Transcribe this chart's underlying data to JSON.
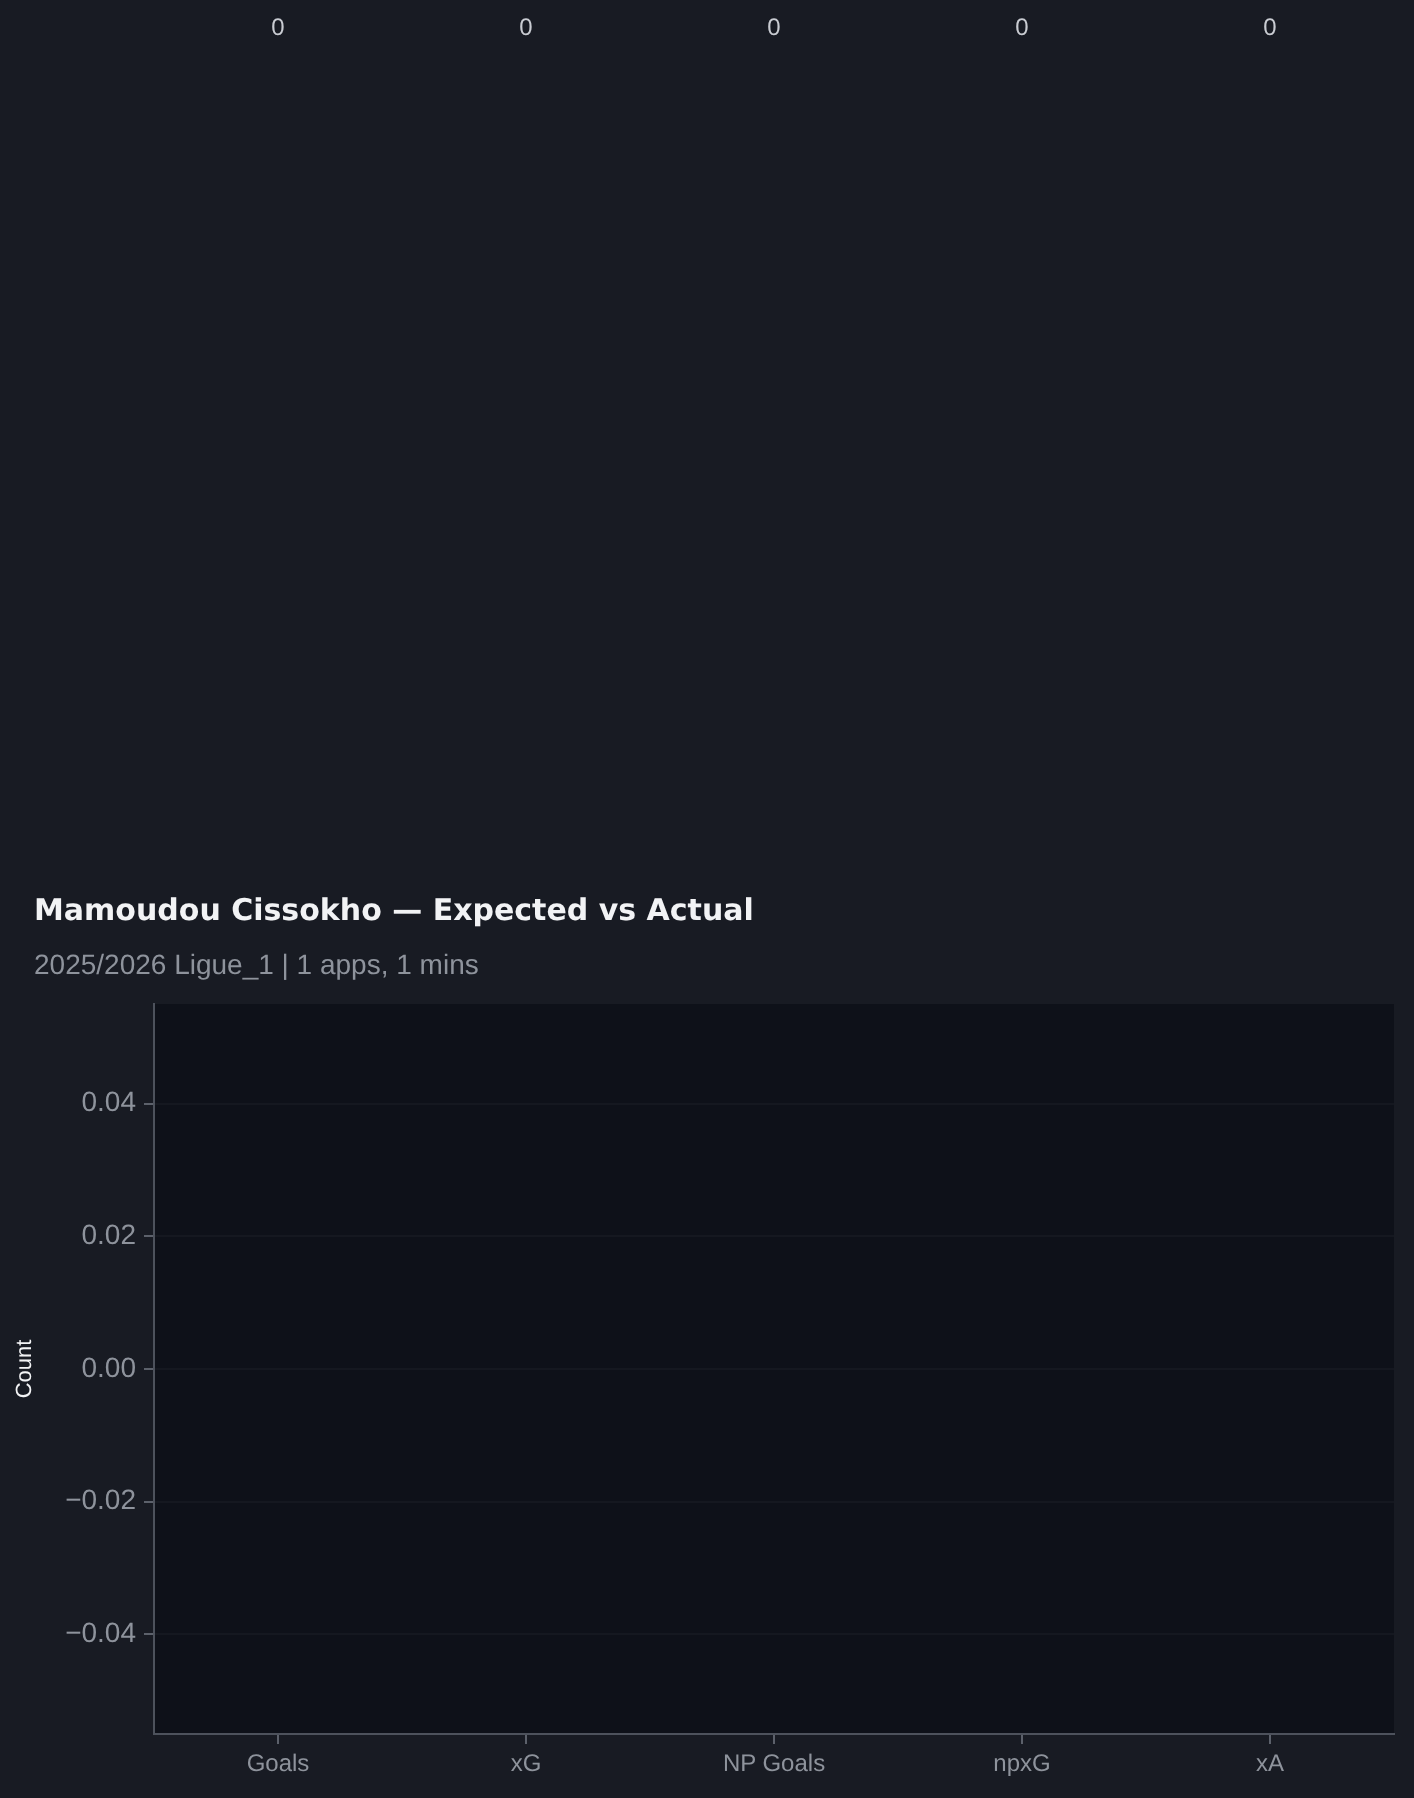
{
  "chart_data": {
    "type": "bar",
    "title": "Mamoudou Cissokho — Expected vs Actual",
    "subtitle": "2025/2026 Ligue_1 | 1 apps, 1 mins",
    "ylabel": "Count",
    "categories": [
      "Goals",
      "xG",
      "NP Goals",
      "npxG",
      "xA"
    ],
    "values": [
      0,
      0,
      0,
      0,
      0
    ],
    "data_labels": true,
    "ylim": [
      -0.055,
      0.055
    ],
    "yticks": [
      {
        "value": -0.04,
        "label": "−0.04"
      },
      {
        "value": -0.02,
        "label": "−0.02"
      },
      {
        "value": 0,
        "label": "0.00"
      },
      0.02,
      0.04
    ],
    "grid": "y"
  }
}
